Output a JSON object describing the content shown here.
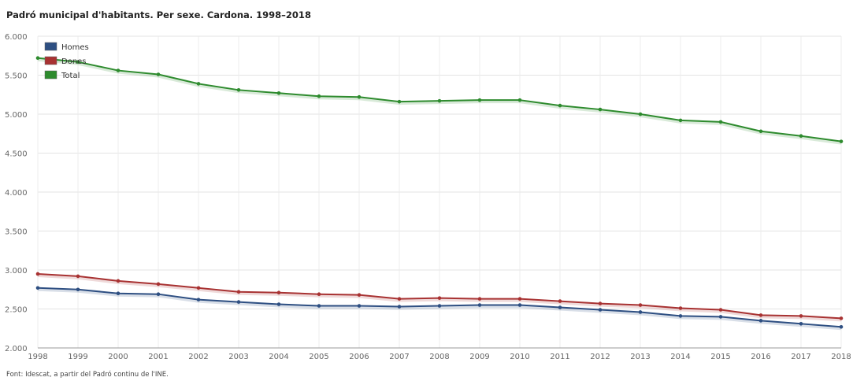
{
  "title": "Padró municipal d'habitants. Per sexe. Cardona. 1998–2018",
  "source": "Font: Idescat, a partir del Padró continu de l'INE.",
  "chart_data": {
    "type": "line",
    "title": "Padró municipal d'habitants. Per sexe. Cardona. 1998–2018",
    "xlabel": "",
    "ylabel": "",
    "ylim": [
      2000,
      6000
    ],
    "grid": true,
    "legend_position": "top-left",
    "x": [
      "1998",
      "1999",
      "2000",
      "2001",
      "2002",
      "2003",
      "2004",
      "2005",
      "2006",
      "2007",
      "2008",
      "2009",
      "2010",
      "2011",
      "2012",
      "2013",
      "2014",
      "2015",
      "2016",
      "2017",
      "2018"
    ],
    "y_ticks": [
      "2.000",
      "2.500",
      "3.000",
      "3.500",
      "4.000",
      "4.500",
      "5.000",
      "5.500",
      "6.000"
    ],
    "series": [
      {
        "name": "Homes",
        "color": "#2e4f82",
        "values": [
          2770,
          2750,
          2700,
          2690,
          2620,
          2590,
          2560,
          2540,
          2540,
          2530,
          2540,
          2550,
          2550,
          2520,
          2490,
          2460,
          2410,
          2400,
          2350,
          2310,
          2270
        ]
      },
      {
        "name": "Dones",
        "color": "#a83232",
        "values": [
          2950,
          2920,
          2860,
          2820,
          2770,
          2720,
          2710,
          2690,
          2680,
          2630,
          2640,
          2630,
          2630,
          2600,
          2570,
          2550,
          2510,
          2490,
          2420,
          2410,
          2380
        ]
      },
      {
        "name": "Total",
        "color": "#2e8b2e",
        "values": [
          5720,
          5670,
          5560,
          5510,
          5390,
          5310,
          5270,
          5230,
          5220,
          5160,
          5170,
          5180,
          5180,
          5110,
          5060,
          5000,
          4920,
          4900,
          4780,
          4720,
          4650
        ]
      }
    ]
  }
}
